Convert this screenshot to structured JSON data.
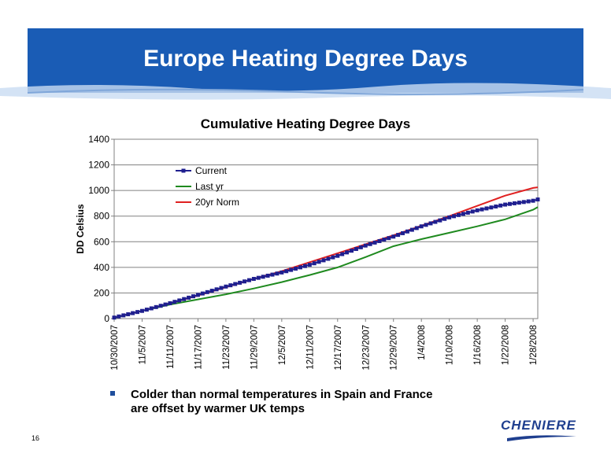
{
  "slide": {
    "title": "Europe Heating Degree Days",
    "bullet": "Colder than normal temperatures in Spain and France\nare offset by warmer UK temps",
    "page_number": "16",
    "logo_text": "CHENIERE",
    "header_color": "#1a5cb5",
    "logo_color": "#1f3f8f"
  },
  "chart_data": {
    "type": "line",
    "title": "Cumulative Heating Degree Days",
    "ylabel": "DD Celsius",
    "xlabel": "",
    "ylim": [
      0,
      1400
    ],
    "yticks": [
      0,
      200,
      400,
      600,
      800,
      1000,
      1200,
      1400
    ],
    "x_tick_labels": [
      "10/30/2007",
      "11/5/2007",
      "11/11/2007",
      "11/17/2007",
      "11/23/2007",
      "11/29/2007",
      "12/5/2007",
      "12/11/2007",
      "12/17/2007",
      "12/23/2007",
      "12/29/2007",
      "1/4/2008",
      "1/10/2008",
      "1/16/2008",
      "1/22/2008",
      "1/28/2008"
    ],
    "grid": "horizontal",
    "legend": "top-left inside plot",
    "series": [
      {
        "name": "Current",
        "color": "#1f1f8f",
        "marker": "square",
        "x": [
          "10/30/2007",
          "11/5/2007",
          "11/11/2007",
          "11/17/2007",
          "11/23/2007",
          "11/29/2007",
          "12/5/2007",
          "12/11/2007",
          "12/17/2007",
          "12/23/2007",
          "12/29/2007",
          "1/4/2008",
          "1/10/2008",
          "1/16/2008",
          "1/22/2008",
          "1/28/2008",
          "1/29/2008"
        ],
        "y": [
          8,
          60,
          120,
          185,
          250,
          310,
          360,
          420,
          490,
          570,
          640,
          720,
          790,
          845,
          890,
          920,
          930
        ]
      },
      {
        "name": "Last yr",
        "color": "#1f8a1f",
        "marker": "none",
        "x": [
          "10/30/2007",
          "11/5/2007",
          "11/11/2007",
          "11/17/2007",
          "11/23/2007",
          "11/29/2007",
          "12/5/2007",
          "12/11/2007",
          "12/17/2007",
          "12/23/2007",
          "12/29/2007",
          "1/4/2008",
          "1/10/2008",
          "1/16/2008",
          "1/22/2008",
          "1/28/2008",
          "1/29/2008"
        ],
        "y": [
          5,
          60,
          110,
          150,
          190,
          235,
          285,
          340,
          400,
          480,
          565,
          620,
          670,
          720,
          775,
          850,
          870
        ]
      },
      {
        "name": "20yr Norm",
        "color": "#e02020",
        "marker": "none",
        "x": [
          "10/30/2007",
          "11/5/2007",
          "11/11/2007",
          "11/17/2007",
          "11/23/2007",
          "11/29/2007",
          "12/5/2007",
          "12/11/2007",
          "12/17/2007",
          "12/23/2007",
          "12/29/2007",
          "1/4/2008",
          "1/10/2008",
          "1/16/2008",
          "1/22/2008",
          "1/28/2008",
          "1/29/2008"
        ],
        "y": [
          8,
          60,
          120,
          180,
          245,
          310,
          370,
          440,
          510,
          580,
          650,
          725,
          800,
          880,
          960,
          1020,
          1025
        ]
      }
    ]
  }
}
